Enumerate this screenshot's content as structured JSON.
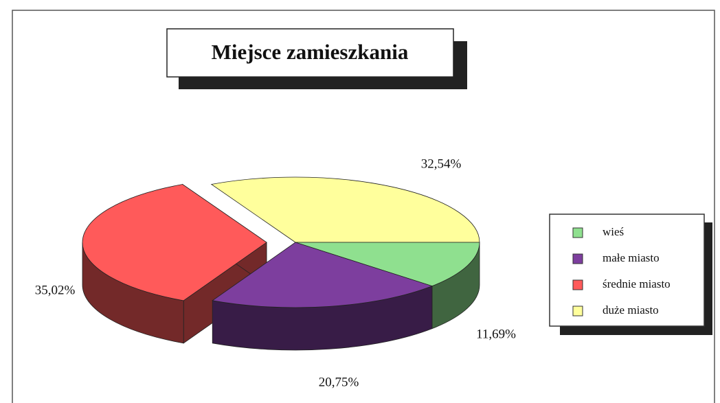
{
  "chart_data": {
    "type": "pie",
    "title": "Miejsce zamieszkania",
    "categories": [
      "wieś",
      "małe miasto",
      "średnie miasto",
      "duże miasto"
    ],
    "values": [
      11.69,
      20.75,
      35.02,
      32.54
    ],
    "value_labels": [
      "11,69%",
      "20,75%",
      "35,02%",
      "32,54%"
    ],
    "colors": [
      "#8fe08f",
      "#7d3e9e",
      "#ff5a5a",
      "#ffff9c"
    ],
    "explode": [
      false,
      false,
      true,
      false
    ],
    "legend": "right"
  }
}
